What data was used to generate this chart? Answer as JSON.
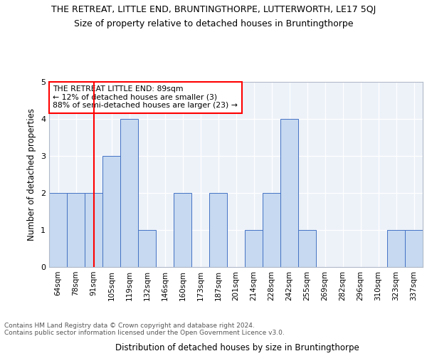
{
  "title": "THE RETREAT, LITTLE END, BRUNTINGTHORPE, LUTTERWORTH, LE17 5QJ",
  "subtitle": "Size of property relative to detached houses in Bruntingthorpe",
  "xlabel": "Distribution of detached houses by size in Bruntingthorpe",
  "ylabel": "Number of detached properties",
  "categories": [
    "64sqm",
    "78sqm",
    "91sqm",
    "105sqm",
    "119sqm",
    "132sqm",
    "146sqm",
    "160sqm",
    "173sqm",
    "187sqm",
    "201sqm",
    "214sqm",
    "228sqm",
    "242sqm",
    "255sqm",
    "269sqm",
    "282sqm",
    "296sqm",
    "310sqm",
    "323sqm",
    "337sqm"
  ],
  "values": [
    2,
    2,
    2,
    3,
    4,
    1,
    0,
    2,
    0,
    2,
    0,
    1,
    2,
    4,
    1,
    0,
    0,
    0,
    0,
    1,
    1
  ],
  "bar_color": "#c6d9f0",
  "bar_edge_color": "#4472c4",
  "vline_x": 2,
  "vline_color": "#ff0000",
  "annotation_text": "THE RETREAT LITTLE END: 89sqm\n← 12% of detached houses are smaller (3)\n88% of semi-detached houses are larger (23) →",
  "annotation_box_edge_color": "#ff0000",
  "ylim": [
    0,
    5
  ],
  "yticks": [
    0,
    1,
    2,
    3,
    4,
    5
  ],
  "background_color": "#edf2f9",
  "footer_text": "Contains HM Land Registry data © Crown copyright and database right 2024.\nContains public sector information licensed under the Open Government Licence v3.0.",
  "title_fontsize": 9,
  "subtitle_fontsize": 9,
  "xlabel_fontsize": 8.5,
  "ylabel_fontsize": 8.5,
  "footer_fontsize": 6.5
}
